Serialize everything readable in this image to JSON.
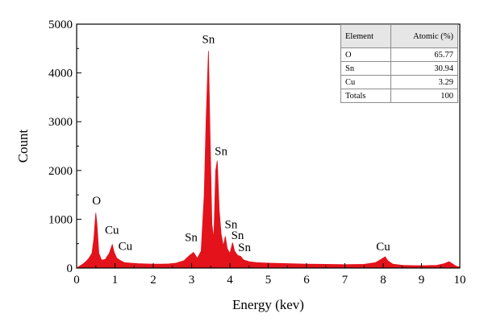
{
  "chart_data": {
    "type": "area",
    "xlabel": "Energy (kev)",
    "ylabel": "Count",
    "xlim": [
      0,
      10
    ],
    "ylim": [
      0,
      5000
    ],
    "x_ticks": [
      "0",
      "1",
      "2",
      "3",
      "4",
      "5",
      "6",
      "7",
      "8",
      "9",
      "10"
    ],
    "y_ticks": [
      "0",
      "1000",
      "2000",
      "3000",
      "4000",
      "5000"
    ],
    "grid": false,
    "series_color": "#e3121b",
    "spectrum": [
      [
        0.0,
        0
      ],
      [
        0.08,
        40
      ],
      [
        0.16,
        80
      ],
      [
        0.24,
        130
      ],
      [
        0.32,
        200
      ],
      [
        0.4,
        300
      ],
      [
        0.45,
        600
      ],
      [
        0.5,
        1130
      ],
      [
        0.53,
        900
      ],
      [
        0.58,
        300
      ],
      [
        0.65,
        160
      ],
      [
        0.75,
        180
      ],
      [
        0.85,
        300
      ],
      [
        0.93,
        480
      ],
      [
        0.98,
        320
      ],
      [
        1.05,
        200
      ],
      [
        1.15,
        150
      ],
      [
        1.25,
        110
      ],
      [
        1.4,
        100
      ],
      [
        1.6,
        90
      ],
      [
        1.8,
        85
      ],
      [
        2.0,
        80
      ],
      [
        2.2,
        80
      ],
      [
        2.4,
        85
      ],
      [
        2.6,
        100
      ],
      [
        2.8,
        150
      ],
      [
        2.95,
        260
      ],
      [
        3.05,
        320
      ],
      [
        3.15,
        200
      ],
      [
        3.25,
        350
      ],
      [
        3.33,
        1500
      ],
      [
        3.38,
        3050
      ],
      [
        3.44,
        4450
      ],
      [
        3.48,
        2800
      ],
      [
        3.53,
        900
      ],
      [
        3.58,
        600
      ],
      [
        3.63,
        2000
      ],
      [
        3.67,
        2200
      ],
      [
        3.72,
        1200
      ],
      [
        3.77,
        700
      ],
      [
        3.83,
        450
      ],
      [
        3.88,
        650
      ],
      [
        3.93,
        400
      ],
      [
        4.0,
        300
      ],
      [
        4.07,
        520
      ],
      [
        4.12,
        350
      ],
      [
        4.2,
        260
      ],
      [
        4.28,
        240
      ],
      [
        4.35,
        170
      ],
      [
        4.5,
        130
      ],
      [
        4.7,
        110
      ],
      [
        5.0,
        100
      ],
      [
        5.5,
        90
      ],
      [
        6.0,
        80
      ],
      [
        6.5,
        75
      ],
      [
        7.0,
        70
      ],
      [
        7.5,
        75
      ],
      [
        7.8,
        110
      ],
      [
        7.95,
        180
      ],
      [
        8.05,
        230
      ],
      [
        8.12,
        150
      ],
      [
        8.25,
        80
      ],
      [
        8.5,
        55
      ],
      [
        8.8,
        50
      ],
      [
        9.1,
        50
      ],
      [
        9.4,
        55
      ],
      [
        9.6,
        90
      ],
      [
        9.72,
        130
      ],
      [
        9.8,
        90
      ],
      [
        9.9,
        40
      ],
      [
        10.0,
        20
      ]
    ],
    "peak_labels": [
      {
        "text": "O",
        "x": 0.52,
        "y": 1300
      },
      {
        "text": "Cu",
        "x": 0.92,
        "y": 700
      },
      {
        "text": "Cu",
        "x": 1.27,
        "y": 370
      },
      {
        "text": "Sn",
        "x": 3.44,
        "y": 4610
      },
      {
        "text": "Sn",
        "x": 3.77,
        "y": 2320
      },
      {
        "text": "Sn",
        "x": 2.99,
        "y": 550
      },
      {
        "text": "Sn",
        "x": 4.03,
        "y": 820
      },
      {
        "text": "Sn",
        "x": 4.2,
        "y": 590
      },
      {
        "text": "Sn",
        "x": 4.38,
        "y": 350
      },
      {
        "text": "Cu",
        "x": 8.0,
        "y": 360
      }
    ]
  },
  "table": {
    "headers": [
      "Element",
      "Atomic (%)"
    ],
    "rows": [
      {
        "element": "O",
        "value": "65.77"
      },
      {
        "element": "Sn",
        "value": "30.94"
      },
      {
        "element": "Cu",
        "value": "3.29"
      },
      {
        "element": "Totals",
        "value": "100"
      }
    ]
  }
}
